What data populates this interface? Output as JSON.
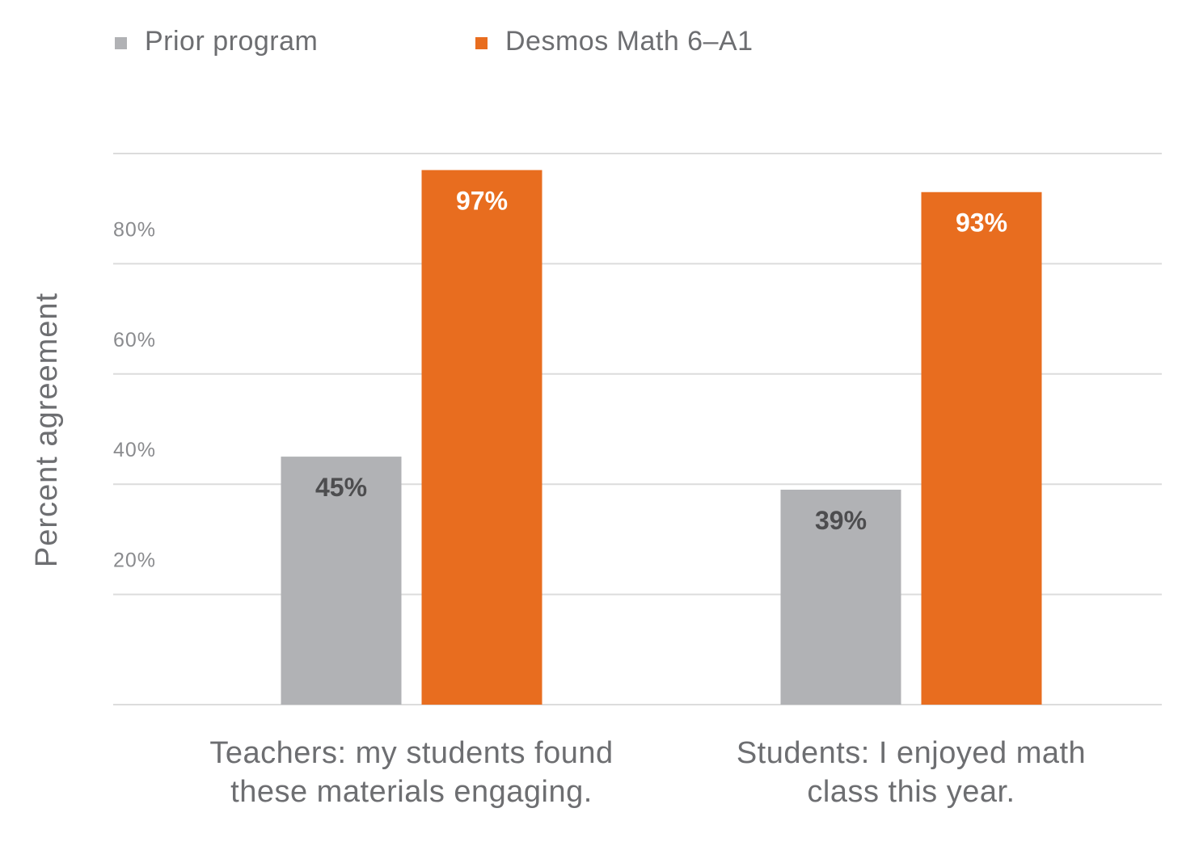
{
  "chart_data": {
    "type": "bar",
    "title": "",
    "xlabel": "",
    "ylabel": "Percent agreement",
    "ylim": [
      0,
      100
    ],
    "yticks": [
      20,
      40,
      60,
      80
    ],
    "ytick_labels": [
      "20%",
      "40%",
      "60%",
      "80%"
    ],
    "grid": true,
    "legend_position": "top-left",
    "categories": [
      [
        "Teachers: my students found",
        "these materials engaging."
      ],
      [
        "Students: I enjoyed math",
        "class this year."
      ]
    ],
    "series": [
      {
        "name": "Prior program",
        "color": "#b1b2b5",
        "label_color": "#4d4d4f",
        "values": [
          45,
          39
        ],
        "labels": [
          "45%",
          "39%"
        ]
      },
      {
        "name": "Desmos Math 6–A1",
        "color": "#e86d1f",
        "label_color": "#ffffff",
        "values": [
          97,
          93
        ],
        "labels": [
          "97%",
          "93%"
        ]
      }
    ]
  }
}
